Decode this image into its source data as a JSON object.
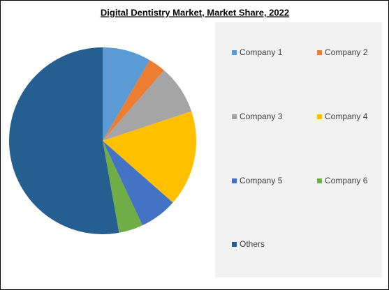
{
  "chart_data": {
    "type": "pie",
    "title": "Digital Dentistry Market, Market Share, 2022",
    "categories": [
      "Company 1",
      "Company 2",
      "Company 3",
      "Company 4",
      "Company 5",
      "Company 6",
      "Others"
    ],
    "values": [
      8.4,
      3,
      8.5,
      16.6,
      6.5,
      4.2,
      52.8
    ],
    "colors": [
      "#5b9bd5",
      "#ed7d31",
      "#a5a5a5",
      "#ffc000",
      "#4472c4",
      "#70ad47",
      "#255e91"
    ],
    "legend": "right"
  }
}
